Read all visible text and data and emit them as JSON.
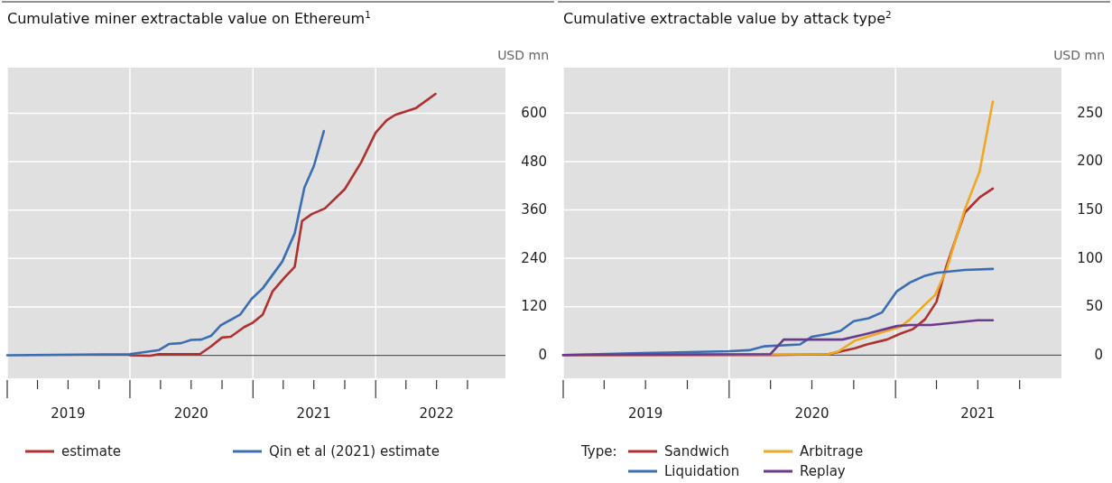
{
  "chart_data": [
    {
      "type": "line",
      "title": "Cumulative miner extractable value on Ethereum$^{1}$",
      "ylabel": "USD mn",
      "xlim": [
        "2019-01-01",
        "2023-01-22"
      ],
      "ylim": [
        -57,
        713
      ],
      "yticks": [
        0,
        120,
        240,
        360,
        480,
        600
      ],
      "xticks": [
        {
          "value": "2019-01-01",
          "label": null
        },
        {
          "value": "2019-04-01",
          "label": null
        },
        {
          "value": "2019-07-01",
          "label": "2019"
        },
        {
          "value": "2019-10-01",
          "label": null
        },
        {
          "value": "2020-01-01",
          "label": null
        },
        {
          "value": "2020-04-01",
          "label": null
        },
        {
          "value": "2020-07-01",
          "label": "2020"
        },
        {
          "value": "2020-10-01",
          "label": null
        },
        {
          "value": "2021-01-01",
          "label": null
        },
        {
          "value": "2021-04-01",
          "label": null
        },
        {
          "value": "2021-07-01",
          "label": "2021"
        },
        {
          "value": "2021-10-01",
          "label": null
        },
        {
          "value": "2022-01-01",
          "label": null
        },
        {
          "value": "2022-04-01",
          "label": null
        },
        {
          "value": "2022-07-01",
          "label": "2022"
        },
        {
          "value": "2022-10-01",
          "label": null
        }
      ],
      "grid": true,
      "legend": "bottom",
      "ref_lines": [
        {
          "axis": "y",
          "value": 0,
          "color": "#555555"
        }
      ],
      "series": [
        {
          "name": "estimate",
          "color": "#b03030",
          "x": [
            "2020-01-01",
            "2020-03-01",
            "2020-03-28",
            "2020-07-27",
            "2020-08-29",
            "2020-10-01",
            "2020-10-27",
            "2020-12-06",
            "2021-01-01",
            "2021-01-30",
            "2021-02-28",
            "2021-04-05",
            "2021-05-05",
            "2021-05-27",
            "2021-06-25",
            "2021-08-03",
            "2021-10-01",
            "2021-11-18",
            "2022-01-01",
            "2022-02-03",
            "2022-02-28",
            "2022-05-01",
            "2022-06-28"
          ],
          "values": [
            0,
            -1,
            3,
            3,
            22,
            44,
            46,
            70,
            81,
            101,
            158,
            193,
            219,
            333,
            350,
            364,
            412,
            477,
            552,
            583,
            596,
            613,
            648
          ]
        },
        {
          "name": "Qin et al (2021) estimate",
          "color": "#3b6db3",
          "x": [
            "2019-01-01",
            "2020-01-01",
            "2020-03-28",
            "2020-04-26",
            "2020-06-01",
            "2020-07-01",
            "2020-07-31",
            "2020-08-29",
            "2020-09-27",
            "2020-11-24",
            "2020-12-28",
            "2021-01-30",
            "2021-03-29",
            "2021-05-05",
            "2021-06-03",
            "2021-07-01",
            "2021-07-31"
          ],
          "values": [
            0,
            3,
            13,
            28,
            30,
            38,
            39,
            48,
            74,
            101,
            140,
            166,
            232,
            302,
            416,
            469,
            556
          ]
        }
      ]
    },
    {
      "type": "line",
      "title": "Cumulative extractable value by attack type$^{2}$",
      "ylabel": "USD mn",
      "legend_title": "Type:",
      "xlim": [
        "2019-01-01",
        "2022-01-01"
      ],
      "ylim": [
        -24,
        297
      ],
      "yticks": [
        0,
        50,
        100,
        150,
        200,
        250
      ],
      "xticks": [
        {
          "value": "2019-01-01",
          "label": null
        },
        {
          "value": "2019-04-01",
          "label": null
        },
        {
          "value": "2019-07-01",
          "label": "2019"
        },
        {
          "value": "2019-10-01",
          "label": null
        },
        {
          "value": "2020-01-01",
          "label": null
        },
        {
          "value": "2020-04-01",
          "label": null
        },
        {
          "value": "2020-07-01",
          "label": "2020"
        },
        {
          "value": "2020-10-01",
          "label": null
        },
        {
          "value": "2021-01-01",
          "label": null
        },
        {
          "value": "2021-04-01",
          "label": null
        },
        {
          "value": "2021-07-01",
          "label": "2021"
        },
        {
          "value": "2021-10-01",
          "label": null
        }
      ],
      "grid": true,
      "legend": "bottom",
      "ref_lines": [
        {
          "axis": "y",
          "value": 0,
          "color": "#555555"
        }
      ],
      "series": [
        {
          "name": "Sandwich",
          "color": "#b03030",
          "x": [
            "2019-01-01",
            "2020-04-01",
            "2020-08-07",
            "2020-10-04",
            "2020-10-30",
            "2020-12-13",
            "2021-01-11",
            "2021-02-09",
            "2021-03-07",
            "2021-04-01",
            "2021-04-23",
            "2021-06-02",
            "2021-07-05",
            "2021-08-03"
          ],
          "values": [
            0,
            0,
            1,
            7,
            11,
            16,
            22,
            27,
            37,
            55,
            92,
            147,
            163,
            172
          ]
        },
        {
          "name": "Arbitrage",
          "color": "#f0a820",
          "x": [
            "2019-01-01",
            "2020-08-07",
            "2020-08-29",
            "2020-10-04",
            "2020-12-06",
            "2021-01-11",
            "2021-02-02",
            "2021-03-04",
            "2021-03-29",
            "2021-04-23",
            "2021-06-02",
            "2021-07-05",
            "2021-08-03"
          ],
          "values": [
            0,
            1,
            4,
            15,
            24,
            29,
            37,
            51,
            62,
            88,
            150,
            190,
            262
          ]
        },
        {
          "name": "Liquidation",
          "color": "#3b6db3",
          "x": [
            "2019-01-01",
            "2019-06-25",
            "2020-01-01",
            "2020-02-14",
            "2020-03-17",
            "2020-06-05",
            "2020-07-01",
            "2020-08-07",
            "2020-09-02",
            "2020-10-01",
            "2020-11-03",
            "2020-12-02",
            "2021-01-04",
            "2021-02-02",
            "2021-03-07",
            "2021-04-01",
            "2021-06-02",
            "2021-08-03"
          ],
          "values": [
            0,
            2,
            4,
            5,
            9,
            11,
            19,
            22,
            25,
            35,
            38,
            44,
            66,
            75,
            82,
            85,
            88,
            89
          ]
        },
        {
          "name": "Replay",
          "color": "#6b3a8c",
          "x": [
            "2019-01-01",
            "2020-04-01",
            "2020-04-30",
            "2020-06-25",
            "2020-09-06",
            "2020-10-30",
            "2021-01-04",
            "2021-02-02",
            "2021-03-20",
            "2021-07-01",
            "2021-08-03"
          ],
          "values": [
            0,
            1,
            16,
            16,
            16,
            22,
            30,
            31,
            31,
            36,
            36
          ]
        }
      ]
    }
  ]
}
